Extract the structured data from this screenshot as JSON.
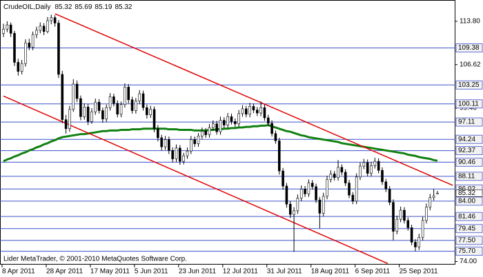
{
  "chart_data": {
    "type": "candlestick",
    "title": "CrudeOIL,Daily",
    "footer": "Lider MetaTrader, © 2001-2010 MetaQuotes Software Corp.",
    "categories": [
      "8 Apr 2011",
      null,
      null,
      null,
      null,
      null,
      null,
      null,
      null,
      null,
      null,
      null,
      "28 Apr 2011",
      null,
      null,
      null,
      null,
      null,
      null,
      null,
      null,
      null,
      null,
      null,
      "17 May 2011",
      null,
      null,
      null,
      null,
      null,
      null,
      null,
      null,
      null,
      null,
      null,
      "5 Jun 2011",
      null,
      null,
      null,
      null,
      null,
      null,
      null,
      null,
      null,
      null,
      null,
      "23 Jun 2011",
      null,
      null,
      null,
      null,
      null,
      null,
      null,
      null,
      null,
      null,
      null,
      "12 Jul 2011",
      null,
      null,
      null,
      null,
      null,
      null,
      null,
      null,
      null,
      null,
      null,
      "31 Jul 2011",
      null,
      null,
      null,
      null,
      null,
      null,
      null,
      null,
      null,
      null,
      null,
      "18 Aug 2011",
      null,
      null,
      null,
      null,
      null,
      null,
      null,
      null,
      null,
      null,
      null,
      "6 Sep 2011",
      null,
      null,
      null,
      null,
      null,
      null,
      null,
      null,
      null,
      null,
      null,
      "25 Sep 2011",
      null,
      null,
      null,
      null,
      null,
      null,
      null,
      null,
      null,
      null
    ],
    "ohlc": [
      [
        111.8,
        113.4,
        111.2,
        112.5
      ],
      [
        112.5,
        113.8,
        112.0,
        113.2
      ],
      [
        113.2,
        113.6,
        111.2,
        111.8
      ],
      [
        111.8,
        112.2,
        106.4,
        107.0
      ],
      [
        107.0,
        107.6,
        104.8,
        105.5
      ],
      [
        105.5,
        107.4,
        105.0,
        106.8
      ],
      [
        106.8,
        110.8,
        106.3,
        110.2
      ],
      [
        110.2,
        110.9,
        109.0,
        109.5
      ],
      [
        109.5,
        112.1,
        109.0,
        111.6
      ],
      [
        111.6,
        112.9,
        111.0,
        112.3
      ],
      [
        112.3,
        113.6,
        111.8,
        113.0
      ],
      [
        113.0,
        113.5,
        111.5,
        112.1
      ],
      [
        112.1,
        114.5,
        111.8,
        113.9
      ],
      [
        113.9,
        114.9,
        113.3,
        114.4
      ],
      [
        114.4,
        114.8,
        112.9,
        113.5
      ],
      [
        113.5,
        114.0,
        104.4,
        105.0
      ],
      [
        105.0,
        105.6,
        96.9,
        97.5
      ],
      [
        97.5,
        98.3,
        95.2,
        96.0
      ],
      [
        96.0,
        99.8,
        95.5,
        99.2
      ],
      [
        99.2,
        104.2,
        98.8,
        103.4
      ],
      [
        103.4,
        104.0,
        100.4,
        101.0
      ],
      [
        101.0,
        101.5,
        97.4,
        98.0
      ],
      [
        98.0,
        100.2,
        97.5,
        99.6
      ],
      [
        99.6,
        100.1,
        96.6,
        97.2
      ],
      [
        97.2,
        99.4,
        96.8,
        98.8
      ],
      [
        98.8,
        101.0,
        98.3,
        100.4
      ],
      [
        100.4,
        100.9,
        98.5,
        99.0
      ],
      [
        99.0,
        99.5,
        97.0,
        97.6
      ],
      [
        97.6,
        100.0,
        97.1,
        99.5
      ],
      [
        99.5,
        101.9,
        99.0,
        101.3
      ],
      [
        101.3,
        101.8,
        99.7,
        100.2
      ],
      [
        100.2,
        100.7,
        97.9,
        98.4
      ],
      [
        98.4,
        100.5,
        97.9,
        100.0
      ],
      [
        100.0,
        103.5,
        99.5,
        102.9
      ],
      [
        102.9,
        103.4,
        100.2,
        100.8
      ],
      [
        100.8,
        101.3,
        98.5,
        99.0
      ],
      [
        99.0,
        101.1,
        98.5,
        100.6
      ],
      [
        100.6,
        102.4,
        100.1,
        101.8
      ],
      [
        101.8,
        102.3,
        99.0,
        99.5
      ],
      [
        99.5,
        100.0,
        97.7,
        98.3
      ],
      [
        98.3,
        99.8,
        97.8,
        99.2
      ],
      [
        99.2,
        99.7,
        95.4,
        96.0
      ],
      [
        96.0,
        96.6,
        93.9,
        94.5
      ],
      [
        94.5,
        95.0,
        92.4,
        93.0
      ],
      [
        93.0,
        94.8,
        92.5,
        94.2
      ],
      [
        94.2,
        94.7,
        91.8,
        92.4
      ],
      [
        92.4,
        92.9,
        90.4,
        91.0
      ],
      [
        91.0,
        93.4,
        90.5,
        92.8
      ],
      [
        92.8,
        93.3,
        90.0,
        90.6
      ],
      [
        90.6,
        92.0,
        90.1,
        91.5
      ],
      [
        91.5,
        92.9,
        91.0,
        92.3
      ],
      [
        92.3,
        94.8,
        91.8,
        94.2
      ],
      [
        94.2,
        94.7,
        93.0,
        93.5
      ],
      [
        93.5,
        95.3,
        93.0,
        94.8
      ],
      [
        94.8,
        96.2,
        94.3,
        95.6
      ],
      [
        95.6,
        96.1,
        94.5,
        95.0
      ],
      [
        95.0,
        96.8,
        94.5,
        96.2
      ],
      [
        96.2,
        97.4,
        95.7,
        96.8
      ],
      [
        96.8,
        97.3,
        95.0,
        95.5
      ],
      [
        95.5,
        98.0,
        95.0,
        97.4
      ],
      [
        97.4,
        97.9,
        96.1,
        96.6
      ],
      [
        96.6,
        98.6,
        96.1,
        98.0
      ],
      [
        98.0,
        98.5,
        96.7,
        97.2
      ],
      [
        97.2,
        97.7,
        96.3,
        96.8
      ],
      [
        96.8,
        99.1,
        96.3,
        98.5
      ],
      [
        98.5,
        99.9,
        98.0,
        99.3
      ],
      [
        99.3,
        99.8,
        97.9,
        98.4
      ],
      [
        98.4,
        100.3,
        97.9,
        99.7
      ],
      [
        99.7,
        100.2,
        98.6,
        99.1
      ],
      [
        99.1,
        99.6,
        98.1,
        98.6
      ],
      [
        98.6,
        100.5,
        98.1,
        99.5
      ],
      [
        99.5,
        100.0,
        97.3,
        97.8
      ],
      [
        97.8,
        98.3,
        96.4,
        96.9
      ],
      [
        96.9,
        97.4,
        94.7,
        95.2
      ],
      [
        95.2,
        95.7,
        93.5,
        94.0
      ],
      [
        94.0,
        94.5,
        88.4,
        89.0
      ],
      [
        89.0,
        89.5,
        85.9,
        86.5
      ],
      [
        86.5,
        87.0,
        82.9,
        83.5
      ],
      [
        83.5,
        84.0,
        81.2,
        81.8
      ],
      [
        81.8,
        83.0,
        75.6,
        82.4
      ],
      [
        82.4,
        85.1,
        81.9,
        84.5
      ],
      [
        84.5,
        86.6,
        84.0,
        86.0
      ],
      [
        86.0,
        86.5,
        84.7,
        85.2
      ],
      [
        85.2,
        87.6,
        84.7,
        87.0
      ],
      [
        87.0,
        87.5,
        85.9,
        86.4
      ],
      [
        86.4,
        86.9,
        83.7,
        84.2
      ],
      [
        84.2,
        84.7,
        79.5,
        82.0
      ],
      [
        82.0,
        85.4,
        81.5,
        84.8
      ],
      [
        84.8,
        88.2,
        84.3,
        87.6
      ],
      [
        87.6,
        89.1,
        87.1,
        88.5
      ],
      [
        88.5,
        89.0,
        87.4,
        87.9
      ],
      [
        87.9,
        90.8,
        87.4,
        89.6
      ],
      [
        89.6,
        90.1,
        88.3,
        88.8
      ],
      [
        88.8,
        89.3,
        86.5,
        87.0
      ],
      [
        87.0,
        87.5,
        84.5,
        85.0
      ],
      [
        85.0,
        85.5,
        83.5,
        84.0
      ],
      [
        84.0,
        88.6,
        83.5,
        88.0
      ],
      [
        88.0,
        90.4,
        87.5,
        89.8
      ],
      [
        89.8,
        91.0,
        89.3,
        90.4
      ],
      [
        90.4,
        90.9,
        88.1,
        88.6
      ],
      [
        88.6,
        90.5,
        88.1,
        89.9
      ],
      [
        89.9,
        91.2,
        89.4,
        90.6
      ],
      [
        90.6,
        91.1,
        88.6,
        89.1
      ],
      [
        89.1,
        89.6,
        86.7,
        87.2
      ],
      [
        87.2,
        87.7,
        85.5,
        86.0
      ],
      [
        86.0,
        86.5,
        83.3,
        83.8
      ],
      [
        83.8,
        84.3,
        77.5,
        79.0
      ],
      [
        79.0,
        81.6,
        78.5,
        81.0
      ],
      [
        81.0,
        83.1,
        80.5,
        82.5
      ],
      [
        82.5,
        83.0,
        80.3,
        80.8
      ],
      [
        80.8,
        81.3,
        79.1,
        79.6
      ],
      [
        79.6,
        80.1,
        76.7,
        77.2
      ],
      [
        77.2,
        77.7,
        75.7,
        76.4
      ],
      [
        76.4,
        78.6,
        75.9,
        78.0
      ],
      [
        78.0,
        81.4,
        77.5,
        80.8
      ],
      [
        80.8,
        83.6,
        80.3,
        83.0
      ],
      [
        83.0,
        85.2,
        82.5,
        84.6
      ],
      [
        84.6,
        86.0,
        84.1,
        84.9
      ],
      [
        85.32,
        85.69,
        85.19,
        85.32
      ]
    ],
    "moving_average": {
      "color": "#108010",
      "values": [
        90.6,
        90.9,
        91.1,
        91.4,
        91.6,
        91.9,
        92.1,
        92.4,
        92.6,
        92.9,
        93.1,
        93.4,
        93.6,
        93.9,
        94.1,
        94.4,
        94.6,
        94.7,
        94.8,
        94.9,
        95.0,
        95.1,
        95.1,
        95.2,
        95.3,
        95.4,
        95.5,
        95.6,
        95.6,
        95.7,
        95.7,
        95.7,
        95.8,
        95.8,
        95.8,
        95.9,
        95.9,
        95.9,
        96.0,
        96.0,
        96.0,
        96.0,
        96.0,
        96.0,
        96.0,
        95.9,
        95.9,
        95.9,
        95.8,
        95.8,
        95.8,
        95.8,
        95.7,
        95.7,
        95.7,
        95.7,
        95.8,
        95.8,
        95.9,
        95.9,
        96.0,
        96.0,
        96.1,
        96.1,
        96.2,
        96.2,
        96.3,
        96.3,
        96.4,
        96.4,
        96.5,
        96.5,
        96.6,
        96.4,
        96.2,
        96.0,
        95.8,
        95.6,
        95.5,
        95.3,
        95.1,
        94.9,
        94.8,
        94.6,
        94.5,
        94.4,
        94.3,
        94.2,
        94.1,
        94.0,
        93.9,
        93.8,
        93.6,
        93.5,
        93.4,
        93.3,
        93.2,
        93.1,
        93.0,
        92.9,
        92.8,
        92.7,
        92.6,
        92.5,
        92.4,
        92.3,
        92.2,
        92.1,
        92.0,
        91.9,
        91.7,
        91.6,
        91.5,
        91.3,
        91.2,
        91.1,
        91.0,
        90.8,
        90.7
      ]
    },
    "trendlines": [
      {
        "color": "#e00000",
        "points": [
          [
            14,
            115.05
          ],
          [
            122.2,
            86.61
          ]
        ]
      },
      {
        "color": "#e00000",
        "points": [
          [
            0,
            101.4
          ],
          [
            104.5,
            73.66
          ]
        ]
      }
    ],
    "ylim": [
      73.6,
      116.8
    ],
    "yticks": [
      {
        "value": 113.8,
        "label": "113.80"
      },
      {
        "value": 106.62,
        "label": "106.62"
      },
      {
        "value": 99.4,
        "label": "99.40"
      },
      {
        "value": 74,
        "label": "74.00"
      }
    ],
    "levels": {
      "color": "#3c50c8",
      "values": [
        {
          "value": 109.38,
          "label": "109.38"
        },
        {
          "value": 103.25,
          "label": "103.25"
        },
        {
          "value": 100.11,
          "label": "100.11"
        },
        {
          "value": 97.11,
          "label": "97.11"
        },
        {
          "value": 94.24,
          "label": "94.24"
        },
        {
          "value": 92.37,
          "label": "92.37"
        },
        {
          "value": 90.46,
          "label": "90.46"
        },
        {
          "value": 88.11,
          "label": "88.11"
        },
        {
          "value": 86.02,
          "label": "86.02"
        },
        {
          "value": 84,
          "label": "84.00"
        },
        {
          "value": 81.46,
          "label": "81.46"
        },
        {
          "value": 79.45,
          "label": "79.45"
        },
        {
          "value": 77.5,
          "label": "77.50"
        },
        {
          "value": 75.7,
          "label": "75.70"
        }
      ]
    }
  }
}
